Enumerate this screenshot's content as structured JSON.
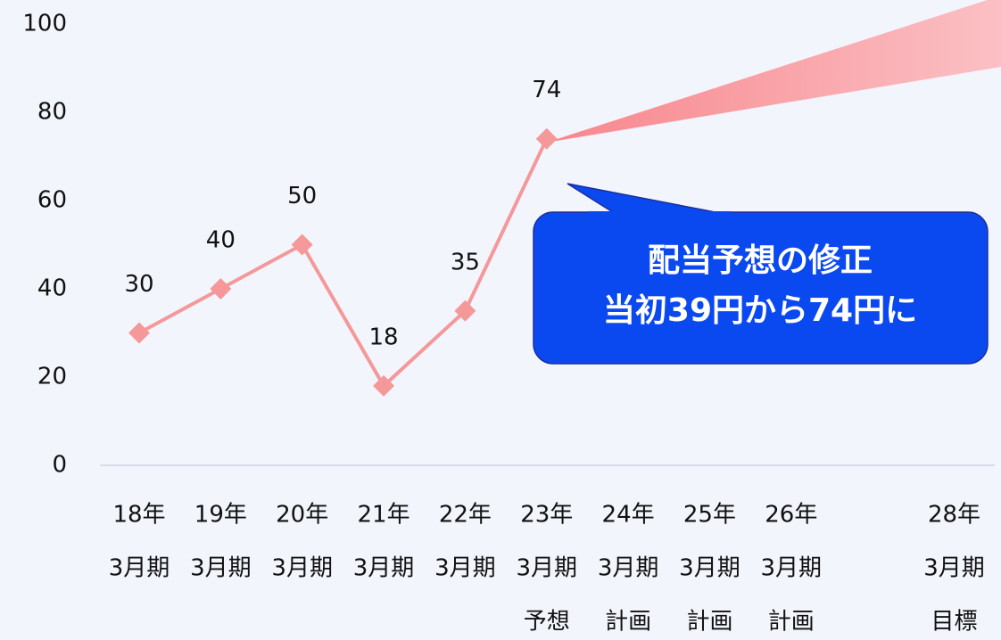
{
  "chart_data": {
    "type": "line",
    "categories": [
      [
        "18年",
        "3月期"
      ],
      [
        "19年",
        "3月期"
      ],
      [
        "20年",
        "3月期"
      ],
      [
        "21年",
        "3月期"
      ],
      [
        "22年",
        "3月期"
      ],
      [
        "23年",
        "3月期",
        "予想"
      ],
      [
        "24年",
        "3月期",
        "計画"
      ],
      [
        "25年",
        "3月期",
        "計画"
      ],
      [
        "26年",
        "3月期",
        "計画"
      ],
      null,
      [
        "28年",
        "3月期",
        "目標"
      ]
    ],
    "values": [
      30,
      40,
      50,
      18,
      35,
      74,
      null,
      null,
      null,
      null,
      null
    ],
    "color": "#f4989a",
    "ylim": [
      0,
      100
    ],
    "yticks": [
      0,
      20,
      40,
      60,
      80,
      100
    ],
    "annotations": [
      "配当予想の修正",
      "当初39円から74円に"
    ]
  }
}
